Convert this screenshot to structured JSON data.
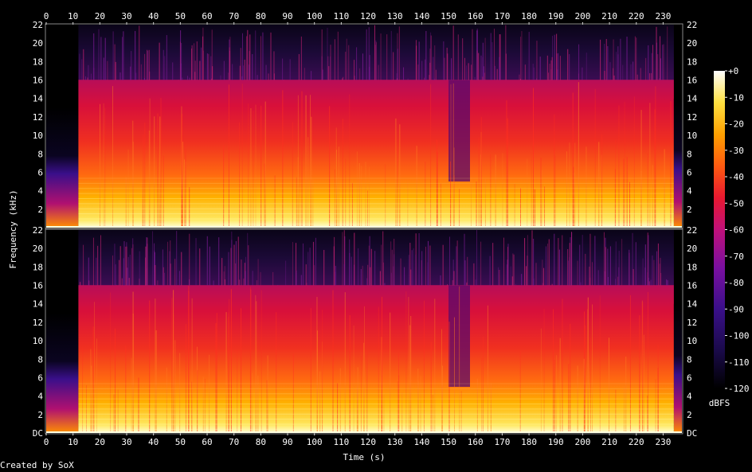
{
  "chart_data": {
    "type": "heatmap",
    "subtype": "spectrogram",
    "channels": 2,
    "xlabel": "Time (s)",
    "ylabel": "Frequency (kHz)",
    "xlim": [
      0,
      237
    ],
    "ylim_khz": [
      0,
      22
    ],
    "x_ticks": [
      "0",
      "10",
      "20",
      "30",
      "40",
      "50",
      "60",
      "70",
      "80",
      "90",
      "100",
      "110",
      "120",
      "130",
      "140",
      "150",
      "160",
      "170",
      "180",
      "190",
      "200",
      "210",
      "220",
      "230"
    ],
    "y_ticks": [
      "2",
      "4",
      "6",
      "8",
      "10",
      "12",
      "14",
      "16",
      "18",
      "20",
      "22"
    ],
    "y_bottom_label": "DC",
    "colorbar": {
      "label": "dBFS",
      "range": [
        -120,
        0
      ],
      "ticks": [
        "+0",
        "-10",
        "-20",
        "-30",
        "-40",
        "-50",
        "-60",
        "-70",
        "-80",
        "-90",
        "-100",
        "-110",
        "-120"
      ],
      "stops": [
        "#000000",
        "#1a0a4a",
        "#3a0f8a",
        "#7a0fa0",
        "#c0107a",
        "#e81830",
        "#ff5a10",
        "#ffa000",
        "#ffe040",
        "#ffffa0",
        "#ffffff"
      ]
    },
    "features": {
      "silence_start_s": 0,
      "music_start_s": 12,
      "music_end_s": 234,
      "lowpass_cutoff_khz": 16,
      "dropout_region_s": [
        150,
        158
      ]
    }
  },
  "footer": {
    "credit": "Created by SoX"
  }
}
